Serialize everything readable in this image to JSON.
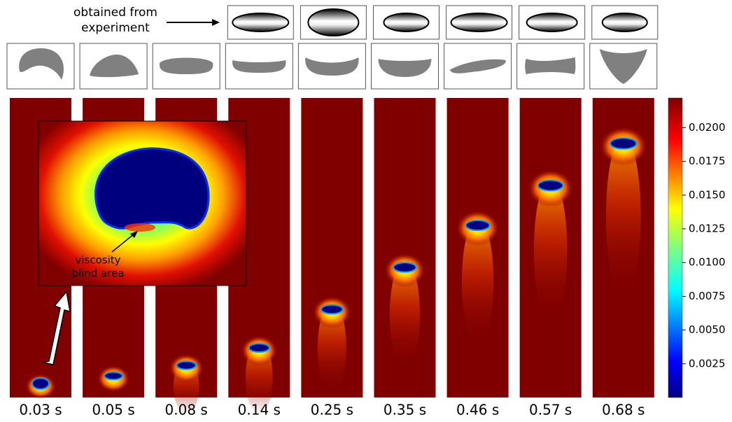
{
  "experiment_label": [
    "obtained from",
    "experiment"
  ],
  "inset_label": [
    "viscosity",
    "blind area"
  ],
  "frames": [
    {
      "time": "0.03 s"
    },
    {
      "time": "0.05 s"
    },
    {
      "time": "0.08 s"
    },
    {
      "time": "0.14 s"
    },
    {
      "time": "0.25 s"
    },
    {
      "time": "0.35 s"
    },
    {
      "time": "0.46 s"
    },
    {
      "time": "0.57 s"
    },
    {
      "time": "0.68 s"
    }
  ],
  "colorbar": {
    "lim": [
      0,
      0.0222
    ],
    "ticks": [
      {
        "value": 0.0025,
        "label": "0.0025"
      },
      {
        "value": 0.005,
        "label": "0.0050"
      },
      {
        "value": 0.0075,
        "label": "0.0075"
      },
      {
        "value": 0.01,
        "label": "0.0100"
      },
      {
        "value": 0.0125,
        "label": "0.0125"
      },
      {
        "value": 0.015,
        "label": "0.0150"
      },
      {
        "value": 0.0175,
        "label": "0.0175"
      },
      {
        "value": 0.02,
        "label": "0.0200"
      }
    ]
  }
}
